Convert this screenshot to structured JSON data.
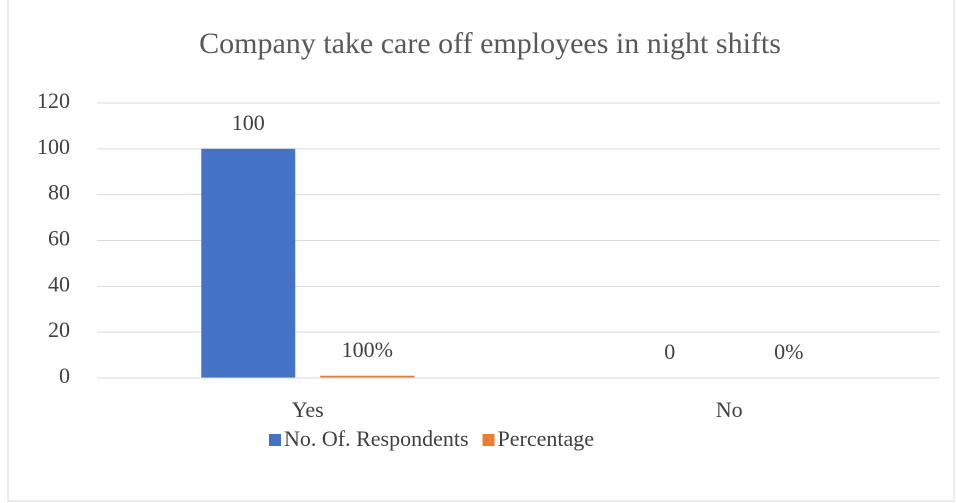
{
  "chart_data": {
    "type": "bar",
    "title": "Company take care off employees in night shifts",
    "categories": [
      "Yes",
      "No"
    ],
    "series": [
      {
        "name": "No. Of. Respondents",
        "color": "#4472c4",
        "values": [
          100,
          0
        ]
      },
      {
        "name": "Percentage",
        "color": "#ed7d31",
        "values": [
          1,
          0
        ],
        "value_labels": [
          "100%",
          "0%"
        ]
      }
    ],
    "ylim": [
      0,
      120
    ],
    "yticks": [
      0,
      20,
      40,
      60,
      80,
      100,
      120
    ],
    "grid": true,
    "legend": "bottom"
  }
}
